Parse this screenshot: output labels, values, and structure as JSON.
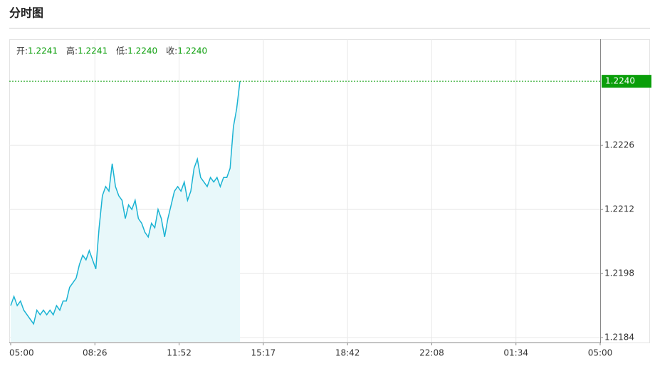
{
  "chart_data": {
    "type": "line",
    "title": "分时图",
    "ohlc": [
      {
        "name": "开:",
        "value": "1.2241"
      },
      {
        "name": "高:",
        "value": "1.2241"
      },
      {
        "name": "低:",
        "value": "1.2240"
      },
      {
        "name": "收:",
        "value": "1.2240"
      }
    ],
    "xticks": [
      "05:00",
      "08:26",
      "11:52",
      "15:17",
      "18:42",
      "22:08",
      "01:34",
      "05:00"
    ],
    "values": [
      1.2191,
      1.2193,
      1.2191,
      1.2192,
      1.219,
      1.2189,
      1.2188,
      1.2187,
      1.219,
      1.2189,
      1.219,
      1.2189,
      1.219,
      1.2189,
      1.2191,
      1.219,
      1.2192,
      1.2192,
      1.2195,
      1.2196,
      1.2197,
      1.22,
      1.2202,
      1.2201,
      1.2203,
      1.2201,
      1.2199,
      1.2208,
      1.2215,
      1.2217,
      1.2216,
      1.2222,
      1.2217,
      1.2215,
      1.2214,
      1.221,
      1.2213,
      1.2212,
      1.2214,
      1.221,
      1.2209,
      1.2207,
      1.2206,
      1.2209,
      1.2208,
      1.2212,
      1.221,
      1.2206,
      1.221,
      1.2213,
      1.2216,
      1.2217,
      1.2216,
      1.2218,
      1.2214,
      1.2216,
      1.2221,
      1.2223,
      1.2219,
      1.2218,
      1.2217,
      1.2219,
      1.2218,
      1.2219,
      1.2217,
      1.2219,
      1.2219,
      1.2221,
      1.223,
      1.2234,
      1.224
    ],
    "color": "#1ab3d3",
    "fill": "#e8f8fa",
    "ylim": [
      1.21831,
      1.22492
    ],
    "yticks": [
      1.2184,
      1.2198,
      1.2212,
      1.2226
    ],
    "last_price": {
      "value": 1.224,
      "label": "1.2240"
    },
    "last_price_color": "#0a9e0a",
    "grid": true
  }
}
